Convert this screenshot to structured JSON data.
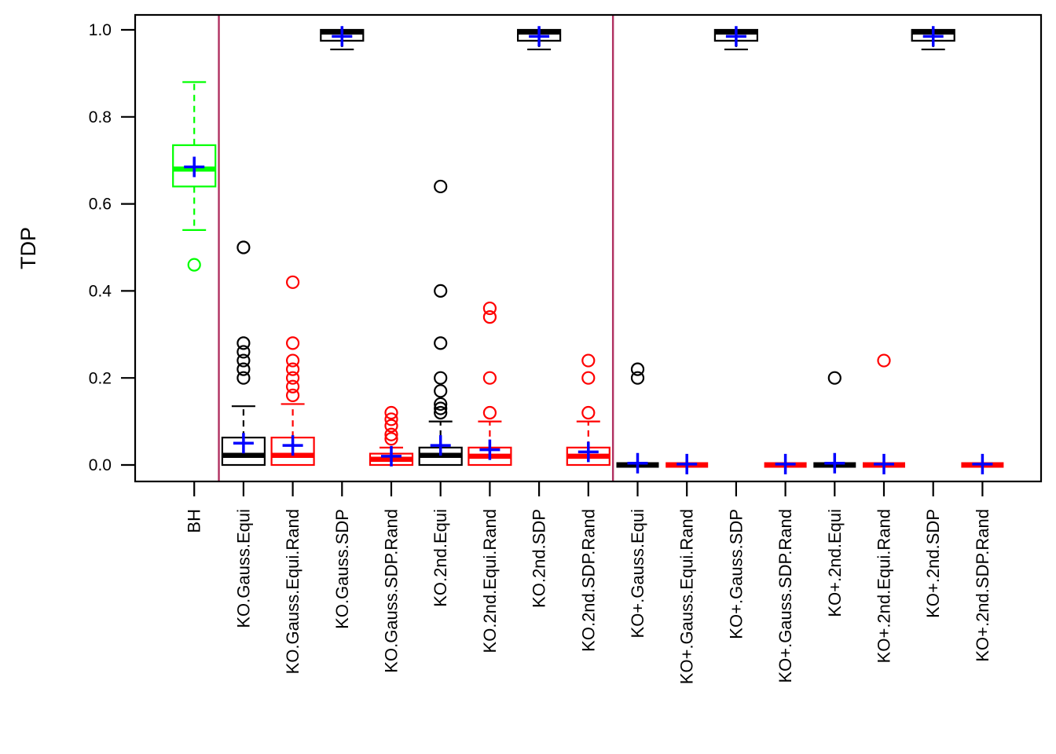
{
  "figure": {
    "ylabel": "TDP"
  },
  "chart_data": {
    "type": "boxplot",
    "title": "",
    "xlabel": "",
    "ylabel": "TDP",
    "ylim": [
      -0.04,
      1.04
    ],
    "grid": false,
    "legend": "none",
    "ytick_labels": [
      "0.0",
      "0.2",
      "0.4",
      "0.6",
      "0.8",
      "1.0"
    ],
    "ytick_values": [
      0.0,
      0.2,
      0.4,
      0.6,
      0.8,
      1.0
    ],
    "colors": {
      "bh_box": "#00ff00",
      "ko_box": "#000000",
      "ko_rand_box": "#ff0000",
      "mean_marker": "#0000ff",
      "separator_line": "#b03060",
      "axis": "#000000"
    },
    "separators_after_index": [
      0,
      8
    ],
    "groups": [
      {
        "label": "BH",
        "color": "#00ff00",
        "stats": {
          "low": 0.54,
          "q1": 0.64,
          "median": 0.68,
          "q3": 0.735,
          "high": 0.88
        },
        "mean": 0.685,
        "outliers": [
          0.46
        ]
      },
      {
        "label": "KO.Gauss.Equi",
        "color": "#000000",
        "stats": {
          "low": 0.0,
          "q1": 0.0,
          "median": 0.022,
          "q3": 0.063,
          "high": 0.135
        },
        "mean": 0.05,
        "outliers": [
          0.5,
          0.28,
          0.26,
          0.24,
          0.22,
          0.2
        ]
      },
      {
        "label": "KO.Gauss.Equi.Rand",
        "color": "#ff0000",
        "stats": {
          "low": 0.0,
          "q1": 0.0,
          "median": 0.022,
          "q3": 0.063,
          "high": 0.14
        },
        "mean": 0.045,
        "outliers": [
          0.42,
          0.28,
          0.24,
          0.22,
          0.2,
          0.18,
          0.16
        ]
      },
      {
        "label": "KO.Gauss.SDP",
        "color": "#000000",
        "stats": {
          "low": 0.955,
          "q1": 0.975,
          "median": 0.995,
          "q3": 1.0,
          "high": 1.0
        },
        "mean": 0.985,
        "outliers": []
      },
      {
        "label": "KO.Gauss.SDP.Rand",
        "color": "#ff0000",
        "stats": {
          "low": 0.0,
          "q1": 0.0,
          "median": 0.013,
          "q3": 0.026,
          "high": 0.04
        },
        "mean": 0.02,
        "outliers": [
          0.12,
          0.105,
          0.09,
          0.07,
          0.06
        ]
      },
      {
        "label": "KO.2nd.Equi",
        "color": "#000000",
        "stats": {
          "low": 0.0,
          "q1": 0.0,
          "median": 0.022,
          "q3": 0.04,
          "high": 0.1
        },
        "mean": 0.045,
        "outliers": [
          0.64,
          0.4,
          0.28,
          0.2,
          0.17,
          0.14,
          0.13,
          0.12
        ]
      },
      {
        "label": "KO.2nd.Equi.Rand",
        "color": "#ff0000",
        "stats": {
          "low": 0.0,
          "q1": 0.0,
          "median": 0.02,
          "q3": 0.04,
          "high": 0.1
        },
        "mean": 0.035,
        "outliers": [
          0.36,
          0.34,
          0.2,
          0.12
        ]
      },
      {
        "label": "KO.2nd.SDP",
        "color": "#000000",
        "stats": {
          "low": 0.955,
          "q1": 0.975,
          "median": 0.995,
          "q3": 1.0,
          "high": 1.0
        },
        "mean": 0.985,
        "outliers": []
      },
      {
        "label": "KO.2nd.SDP.Rand",
        "color": "#ff0000",
        "stats": {
          "low": 0.0,
          "q1": 0.0,
          "median": 0.02,
          "q3": 0.04,
          "high": 0.1
        },
        "mean": 0.03,
        "outliers": [
          0.24,
          0.2,
          0.12
        ]
      },
      {
        "label": "KO+.Gauss.Equi",
        "color": "#000000",
        "stats": {
          "low": 0.0,
          "q1": 0.0,
          "median": 0.0,
          "q3": 0.0,
          "high": 0.0
        },
        "mean": 0.004,
        "outliers": [
          0.22,
          0.2
        ]
      },
      {
        "label": "KO+.Gauss.Equi.Rand",
        "color": "#ff0000",
        "stats": {
          "low": 0.0,
          "q1": 0.0,
          "median": 0.0,
          "q3": 0.0,
          "high": 0.0
        },
        "mean": 0.002,
        "outliers": []
      },
      {
        "label": "KO+.Gauss.SDP",
        "color": "#000000",
        "stats": {
          "low": 0.955,
          "q1": 0.975,
          "median": 0.995,
          "q3": 1.0,
          "high": 1.0
        },
        "mean": 0.985,
        "outliers": []
      },
      {
        "label": "KO+.Gauss.SDP.Rand",
        "color": "#ff0000",
        "stats": {
          "low": 0.0,
          "q1": 0.0,
          "median": 0.0,
          "q3": 0.0,
          "high": 0.0
        },
        "mean": 0.002,
        "outliers": []
      },
      {
        "label": "KO+.2nd.Equi",
        "color": "#000000",
        "stats": {
          "low": 0.0,
          "q1": 0.0,
          "median": 0.0,
          "q3": 0.0,
          "high": 0.0
        },
        "mean": 0.004,
        "outliers": [
          0.2
        ]
      },
      {
        "label": "KO+.2nd.Equi.Rand",
        "color": "#ff0000",
        "stats": {
          "low": 0.0,
          "q1": 0.0,
          "median": 0.0,
          "q3": 0.0,
          "high": 0.0
        },
        "mean": 0.002,
        "outliers": [
          0.24
        ]
      },
      {
        "label": "KO+.2nd.SDP",
        "color": "#000000",
        "stats": {
          "low": 0.955,
          "q1": 0.975,
          "median": 0.995,
          "q3": 1.0,
          "high": 1.0
        },
        "mean": 0.985,
        "outliers": []
      },
      {
        "label": "KO+.2nd.SDP.Rand",
        "color": "#ff0000",
        "stats": {
          "low": 0.0,
          "q1": 0.0,
          "median": 0.0,
          "q3": 0.0,
          "high": 0.0
        },
        "mean": 0.002,
        "outliers": []
      }
    ]
  }
}
